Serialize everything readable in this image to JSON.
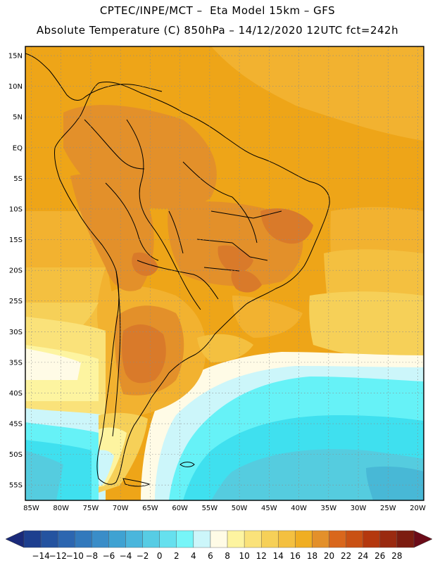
{
  "header": {
    "line1": "CPTEC/INPE/MCT –  Eta Model 15km – GFS",
    "line2": "Absolute Temperature (C) 850hPa – 14/12/2020 12UTC fct=242h"
  },
  "map": {
    "lon_range": [
      -86,
      -19
    ],
    "lat_range": [
      -57.5,
      16.5
    ],
    "lon_ticks": [
      {
        "v": -85,
        "label": "85W"
      },
      {
        "v": -80,
        "label": "80W"
      },
      {
        "v": -75,
        "label": "75W"
      },
      {
        "v": -70,
        "label": "70W"
      },
      {
        "v": -65,
        "label": "65W"
      },
      {
        "v": -60,
        "label": "60W"
      },
      {
        "v": -55,
        "label": "55W"
      },
      {
        "v": -50,
        "label": "50W"
      },
      {
        "v": -45,
        "label": "45W"
      },
      {
        "v": -40,
        "label": "40W"
      },
      {
        "v": -35,
        "label": "35W"
      },
      {
        "v": -30,
        "label": "30W"
      },
      {
        "v": -25,
        "label": "25W"
      },
      {
        "v": -20,
        "label": "20W"
      }
    ],
    "lat_ticks": [
      {
        "v": 15,
        "label": "15N"
      },
      {
        "v": 10,
        "label": "10N"
      },
      {
        "v": 5,
        "label": "5N"
      },
      {
        "v": 0,
        "label": "EQ"
      },
      {
        "v": -5,
        "label": "5S"
      },
      {
        "v": -10,
        "label": "10S"
      },
      {
        "v": -15,
        "label": "15S"
      },
      {
        "v": -20,
        "label": "20S"
      },
      {
        "v": -25,
        "label": "25S"
      },
      {
        "v": -30,
        "label": "30S"
      },
      {
        "v": -35,
        "label": "35S"
      },
      {
        "v": -40,
        "label": "40S"
      },
      {
        "v": -45,
        "label": "45S"
      },
      {
        "v": -50,
        "label": "50S"
      },
      {
        "v": -55,
        "label": "55S"
      }
    ],
    "grid": true,
    "colors": {
      "t18": "#f2b230",
      "t20": "#eea518",
      "t22": "#e3902a",
      "t24": "#d97a2a",
      "t16": "#f4c040",
      "t14": "#f6d058",
      "t12": "#fae27a",
      "t10": "#fdf4a0",
      "t8": "#fffbe6",
      "t6": "#ccf6fa",
      "t4": "#66f2f7",
      "t2": "#3fe0ef",
      "t0": "#55ccdf",
      "tm2": "#48b8d6",
      "border": "#000000"
    }
  },
  "colorbar": {
    "labels": [
      "-14",
      "-12",
      "-10",
      "-8",
      "-6",
      "-4",
      "-2",
      "0",
      "2",
      "4",
      "6",
      "8",
      "10",
      "12",
      "14",
      "16",
      "18",
      "20",
      "22",
      "24",
      "26",
      "28"
    ],
    "colors": [
      "#1d3f8f",
      "#2453a0",
      "#2c66b0",
      "#3279bc",
      "#3a8dc8",
      "#3fa2d2",
      "#4ab6dc",
      "#57cce4",
      "#66e0ee",
      "#77f5f8",
      "#ccf6fa",
      "#fffbe6",
      "#fdf4a0",
      "#fae27a",
      "#f6d058",
      "#f4c040",
      "#f0ae22",
      "#e3902a",
      "#d9671c",
      "#c95114",
      "#b4380e",
      "#9a2a10",
      "#7c1c10"
    ],
    "arrow_left_color": "#1a2a7a",
    "arrow_right_color": "#6b0b18"
  }
}
